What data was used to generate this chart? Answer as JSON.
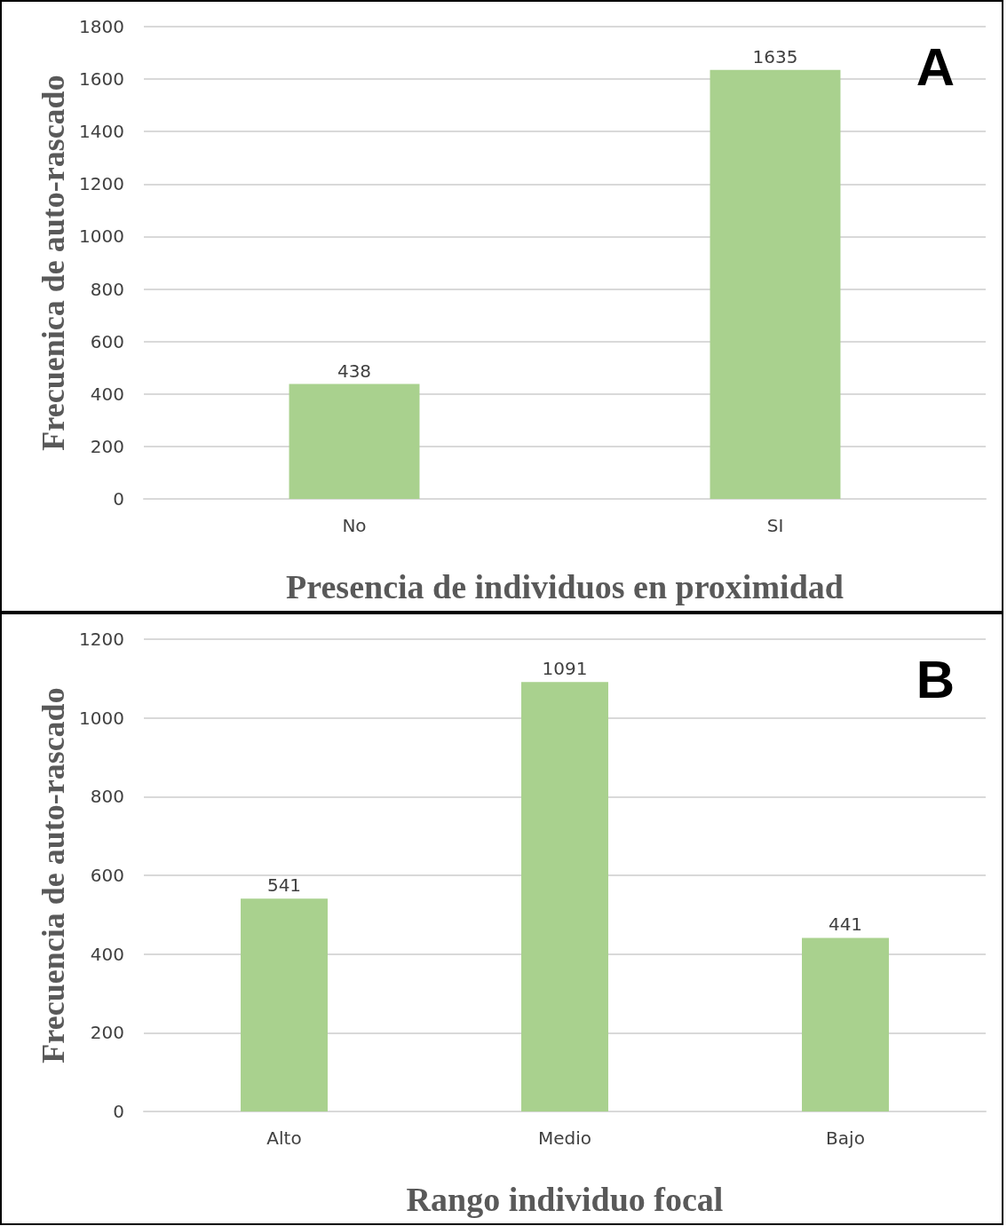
{
  "chart_data": [
    {
      "type": "bar",
      "title": "A",
      "ylabel": "Frecuenica de auto-rascado",
      "xlabel": "Presencia de individuos en proximidad",
      "categories": [
        "No",
        "SI"
      ],
      "values": [
        438,
        1635
      ],
      "color": "#a9d18e",
      "ylim": [
        0,
        1800
      ],
      "yticks": [
        0,
        200,
        400,
        600,
        800,
        1000,
        1200,
        1400,
        1600,
        1800
      ],
      "grid": "y",
      "data_labels": true
    },
    {
      "type": "bar",
      "title": "B",
      "ylabel": "Frecuencia de auto-rascado",
      "xlabel": "Rango individuo focal",
      "categories": [
        "Alto",
        "Medio",
        "Bajo"
      ],
      "values": [
        541,
        1091,
        441
      ],
      "color": "#a9d18e",
      "ylim": [
        0,
        1200
      ],
      "yticks": [
        0,
        200,
        400,
        600,
        800,
        1000,
        1200
      ],
      "grid": "y",
      "data_labels": true
    }
  ]
}
